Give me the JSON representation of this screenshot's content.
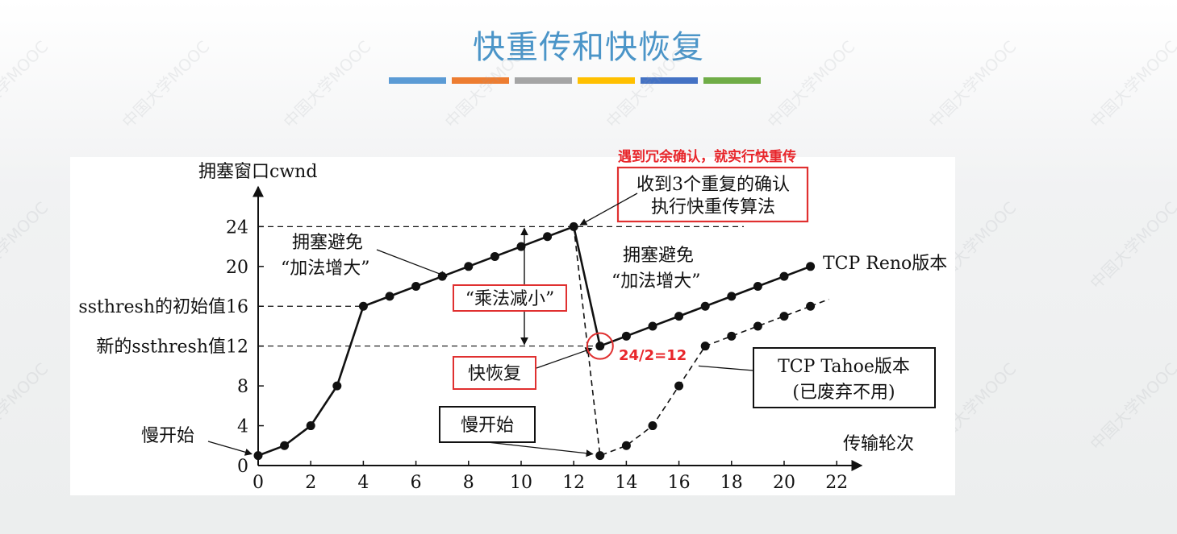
{
  "slide": {
    "title": "快重传和快恢复",
    "bar_colors": [
      "#5b9bd5",
      "#ed7d31",
      "#a5a5a5",
      "#ffc000",
      "#4472c4",
      "#70ad47"
    ],
    "watermark": "中国大学MOOC"
  },
  "chart_data": {
    "type": "line",
    "ylabel": "拥塞窗口cwnd",
    "xlabel": "传输轮次",
    "xlim": [
      0,
      22
    ],
    "ylim": [
      0,
      24
    ],
    "x_ticks": [
      0,
      2,
      4,
      6,
      8,
      10,
      12,
      14,
      16,
      18,
      20,
      22
    ],
    "y_ticks": [
      0,
      4,
      8,
      12,
      16,
      20,
      24
    ],
    "y_tick_labels": {
      "0": "0",
      "4": "4",
      "8": "8",
      "12": "新的ssthresh值12",
      "16": "ssthresh的初始值16",
      "20": "20",
      "24": "24"
    },
    "series": [
      {
        "name": "TCP Reno版本",
        "style": "solid",
        "x": [
          0,
          1,
          2,
          3,
          4,
          5,
          6,
          7,
          8,
          9,
          10,
          11,
          12,
          13,
          14,
          15,
          16,
          17,
          18,
          19,
          20,
          21
        ],
        "y": [
          1,
          2,
          4,
          8,
          16,
          17,
          18,
          19,
          20,
          21,
          22,
          23,
          24,
          12,
          13,
          14,
          15,
          16,
          17,
          18,
          19,
          20
        ]
      },
      {
        "name": "TCP Tahoe版本",
        "style": "dashed",
        "x": [
          12,
          13,
          14,
          15,
          16,
          17,
          18,
          19,
          20,
          21
        ],
        "y": [
          24,
          1,
          2,
          4,
          8,
          12,
          13,
          14,
          15,
          16
        ]
      }
    ],
    "annotations": {
      "slow_start_1": "慢开始",
      "ca1_line1": "拥塞避免",
      "ca1_line2": "“加法增大”",
      "multiplicative_decrease": "“乘法减小”",
      "fast_recovery": "快恢复",
      "slow_start_2": "慢开始",
      "three_dup_line1": "收到3个重复的确认",
      "three_dup_line2": "执行快重传算法",
      "red_note_top": "遇到冗余确认，就实行快重传",
      "red_half": "24/2=12",
      "ca2_line1": "拥塞避免",
      "ca2_line2": "“加法增大”",
      "reno_label": "TCP Reno版本",
      "tahoe_line1": "TCP Tahoe版本",
      "tahoe_line2": "(已废弃不用)"
    }
  }
}
